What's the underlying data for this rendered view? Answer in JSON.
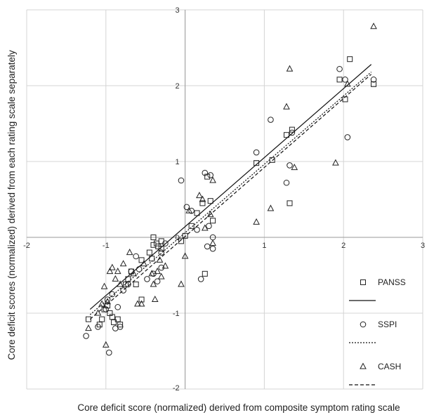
{
  "chart_data": {
    "type": "scatter",
    "xlabel": "Core deficit score (normalized) derived from composite symptom rating scale",
    "ylabel": "Core deficit scores (normalized) derived from each rating scale separately",
    "xlim": [
      -2,
      3
    ],
    "ylim": [
      -2,
      3
    ],
    "x_ticks": [
      "-2",
      "-1",
      "0",
      "1",
      "2",
      "3"
    ],
    "y_ticks": [
      "-2",
      "-1",
      "0",
      "1",
      "2",
      "3"
    ],
    "grid": true,
    "legend_position": "right",
    "series": [
      {
        "name": "PANSS",
        "marker": "square",
        "line_style": "solid",
        "trendline": [
          [
            -1.2,
            -0.95
          ],
          [
            2.35,
            2.28
          ]
        ],
        "points": [
          [
            -1.22,
            -1.08
          ],
          [
            -1.08,
            -1.15
          ],
          [
            -1.05,
            -1.08
          ],
          [
            -1.02,
            -0.95
          ],
          [
            -0.98,
            -0.9
          ],
          [
            -0.95,
            -1.0
          ],
          [
            -0.92,
            -1.05
          ],
          [
            -0.9,
            -1.12
          ],
          [
            -0.85,
            -1.08
          ],
          [
            -0.82,
            -1.15
          ],
          [
            -0.75,
            -0.62
          ],
          [
            -0.72,
            -0.55
          ],
          [
            -0.68,
            -0.45
          ],
          [
            -0.62,
            -0.62
          ],
          [
            -0.55,
            -0.3
          ],
          [
            -0.55,
            -0.82
          ],
          [
            -0.45,
            -0.2
          ],
          [
            -0.42,
            -0.28
          ],
          [
            -0.4,
            -0.1
          ],
          [
            -0.36,
            -0.08
          ],
          [
            -0.34,
            -0.12
          ],
          [
            -0.3,
            -0.05
          ],
          [
            -0.3,
            -0.15
          ],
          [
            -0.4,
            0.0
          ],
          [
            -0.05,
            -0.05
          ],
          [
            0.0,
            0.02
          ],
          [
            0.08,
            0.15
          ],
          [
            0.15,
            0.32
          ],
          [
            0.22,
            0.45
          ],
          [
            0.28,
            0.8
          ],
          [
            0.32,
            0.48
          ],
          [
            0.35,
            0.22
          ],
          [
            0.25,
            -0.48
          ],
          [
            0.9,
            0.98
          ],
          [
            1.1,
            1.02
          ],
          [
            1.28,
            1.35
          ],
          [
            1.32,
            0.45
          ],
          [
            1.35,
            1.42
          ],
          [
            1.95,
            2.08
          ],
          [
            2.02,
            1.82
          ],
          [
            2.08,
            2.35
          ],
          [
            2.38,
            2.02
          ]
        ]
      },
      {
        "name": "SSPI",
        "marker": "circle",
        "line_style": "dotted",
        "trendline": [
          [
            -1.2,
            -1.02
          ],
          [
            2.35,
            2.18
          ]
        ],
        "points": [
          [
            -1.25,
            -1.3
          ],
          [
            -1.1,
            -1.18
          ],
          [
            -1.0,
            -0.95
          ],
          [
            -0.98,
            -0.82
          ],
          [
            -0.96,
            -1.52
          ],
          [
            -0.92,
            -0.75
          ],
          [
            -0.88,
            -1.2
          ],
          [
            -0.85,
            -0.92
          ],
          [
            -0.82,
            -1.18
          ],
          [
            -0.78,
            -0.7
          ],
          [
            -0.72,
            -0.62
          ],
          [
            -0.68,
            -0.45
          ],
          [
            -0.62,
            -0.25
          ],
          [
            -0.58,
            -0.42
          ],
          [
            -0.48,
            -0.55
          ],
          [
            -0.4,
            -0.48
          ],
          [
            -0.35,
            -0.58
          ],
          [
            -0.3,
            -0.4
          ],
          [
            -0.3,
            -0.2
          ],
          [
            -0.25,
            -0.08
          ],
          [
            -0.05,
            0.75
          ],
          [
            0.02,
            0.4
          ],
          [
            0.08,
            0.35
          ],
          [
            0.15,
            0.1
          ],
          [
            0.2,
            -0.55
          ],
          [
            0.25,
            0.85
          ],
          [
            0.28,
            -0.12
          ],
          [
            0.3,
            0.15
          ],
          [
            0.32,
            0.82
          ],
          [
            0.35,
            -0.15
          ],
          [
            0.35,
            0.0
          ],
          [
            0.9,
            1.12
          ],
          [
            1.08,
            1.55
          ],
          [
            1.28,
            0.72
          ],
          [
            1.32,
            0.95
          ],
          [
            1.35,
            1.38
          ],
          [
            1.95,
            2.22
          ],
          [
            2.02,
            2.08
          ],
          [
            2.05,
            1.32
          ],
          [
            2.38,
            2.08
          ]
        ]
      },
      {
        "name": "CASH",
        "marker": "triangle",
        "line_style": "dashed",
        "trendline": [
          [
            -1.2,
            -1.08
          ],
          [
            2.35,
            2.15
          ]
        ],
        "points": [
          [
            -1.22,
            -1.2
          ],
          [
            -1.1,
            -1.0
          ],
          [
            -1.05,
            -0.88
          ],
          [
            -1.02,
            -0.65
          ],
          [
            -1.0,
            -1.42
          ],
          [
            -0.98,
            -0.85
          ],
          [
            -0.95,
            -0.45
          ],
          [
            -0.92,
            -0.4
          ],
          [
            -0.88,
            -0.55
          ],
          [
            -0.85,
            -0.45
          ],
          [
            -0.82,
            -0.62
          ],
          [
            -0.78,
            -0.35
          ],
          [
            -0.7,
            -0.2
          ],
          [
            -0.65,
            -0.48
          ],
          [
            -0.6,
            -0.88
          ],
          [
            -0.55,
            -0.88
          ],
          [
            -0.52,
            -0.35
          ],
          [
            -0.42,
            -0.48
          ],
          [
            -0.4,
            -0.62
          ],
          [
            -0.38,
            -0.82
          ],
          [
            -0.35,
            -0.45
          ],
          [
            -0.32,
            -0.3
          ],
          [
            -0.3,
            -0.52
          ],
          [
            -0.25,
            -0.38
          ],
          [
            -0.05,
            -0.62
          ],
          [
            0.05,
            0.35
          ],
          [
            0.0,
            -0.25
          ],
          [
            0.18,
            0.55
          ],
          [
            0.22,
            0.5
          ],
          [
            0.25,
            0.12
          ],
          [
            0.32,
            0.3
          ],
          [
            0.35,
            0.75
          ],
          [
            0.35,
            -0.08
          ],
          [
            0.9,
            0.2
          ],
          [
            1.08,
            0.38
          ],
          [
            1.28,
            1.72
          ],
          [
            1.32,
            2.22
          ],
          [
            1.38,
            0.92
          ],
          [
            1.9,
            0.98
          ],
          [
            2.05,
            2.02
          ],
          [
            2.38,
            2.78
          ]
        ]
      }
    ]
  }
}
